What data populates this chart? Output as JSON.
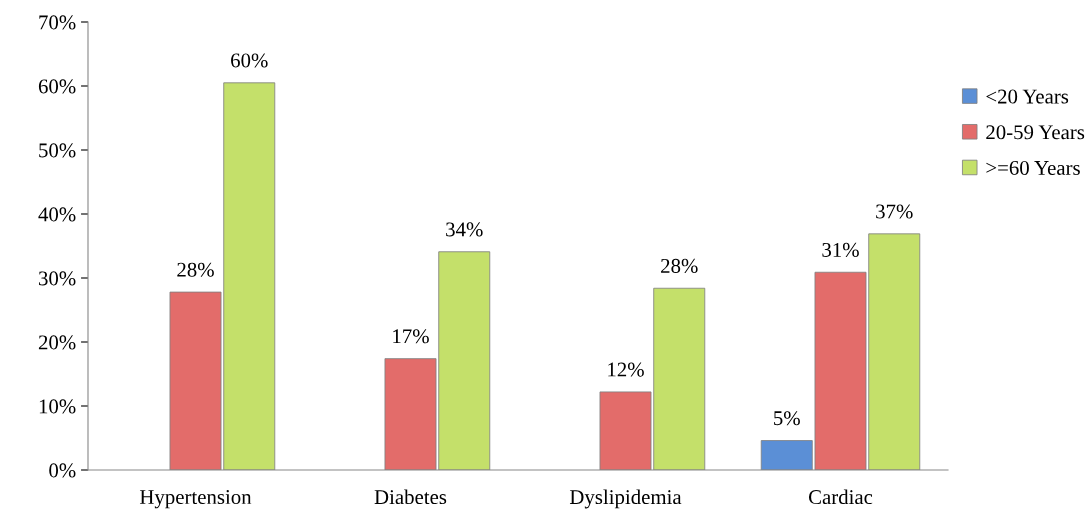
{
  "chart_data": {
    "type": "bar",
    "categories": [
      "Hypertension",
      "Diabetes",
      "Dyslipidemia",
      "Cardiac"
    ],
    "series": [
      {
        "name": "<20 Years",
        "color": "#5b8fd6",
        "values": [
          null,
          null,
          null,
          4.6
        ],
        "value_labels": [
          null,
          null,
          null,
          "5%"
        ]
      },
      {
        "name": "20-59 Years",
        "color": "#e36c6a",
        "values": [
          27.8,
          17.4,
          12.2,
          30.9
        ],
        "value_labels": [
          "28%",
          "17%",
          "12%",
          "31%"
        ]
      },
      {
        "name": ">=60 Years",
        "color": "#c4e06a",
        "values": [
          60.5,
          34.1,
          28.4,
          36.9
        ],
        "value_labels": [
          "60%",
          "34%",
          "28%",
          "37%"
        ]
      }
    ],
    "ylim": [
      0,
      70
    ],
    "yticks": [
      {
        "value": 0,
        "label": "0%"
      },
      {
        "value": 10,
        "label": "10%"
      },
      {
        "value": 20,
        "label": "20%"
      },
      {
        "value": 30,
        "label": "30%"
      },
      {
        "value": 40,
        "label": "40%"
      },
      {
        "value": 50,
        "label": "50%"
      },
      {
        "value": 60,
        "label": "60%"
      },
      {
        "value": 70,
        "label": "70%"
      }
    ],
    "grid": false,
    "legend": "right"
  }
}
